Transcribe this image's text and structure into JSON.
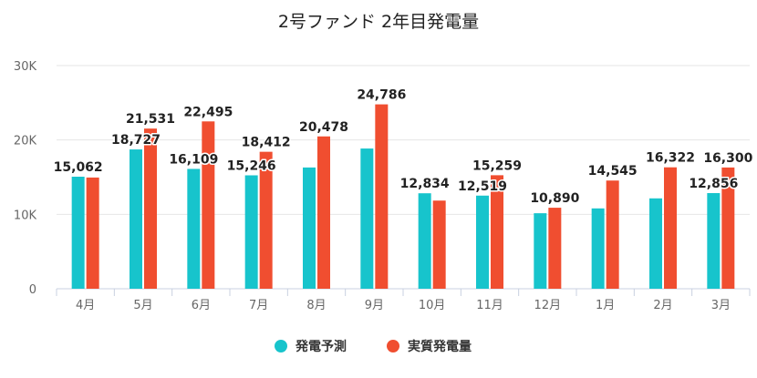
{
  "chart_data": {
    "type": "bar",
    "title": "2号ファンド 2年目発電量",
    "xlabel": "",
    "ylabel": "",
    "categories": [
      "4月",
      "5月",
      "6月",
      "7月",
      "8月",
      "9月",
      "10月",
      "11月",
      "12月",
      "1月",
      "2月",
      "3月"
    ],
    "series": [
      {
        "name": "発電予測",
        "color": "#17c4cc",
        "values": [
          15062,
          18727,
          16109,
          15246,
          16300,
          18850,
          12834,
          12519,
          10150,
          10800,
          12150,
          12856
        ],
        "labels": [
          "15,062",
          "18,727",
          "16,109",
          "15,246",
          null,
          null,
          "12,834",
          "12,519",
          null,
          null,
          null,
          "12,856"
        ]
      },
      {
        "name": "実質発電量",
        "color": "#f04e30",
        "values": [
          14950,
          21531,
          22495,
          18412,
          20478,
          24786,
          11850,
          15259,
          10890,
          14545,
          16322,
          16300
        ],
        "labels": [
          null,
          "21,531",
          "22,495",
          "18,412",
          "20,478",
          "24,786",
          null,
          "15,259",
          "10,890",
          "14,545",
          "16,322",
          "16,300"
        ]
      }
    ],
    "ylim": [
      0,
      30000
    ],
    "yticks": [
      0,
      10000,
      20000,
      30000
    ],
    "ytick_labels": [
      "0",
      "10K",
      "20K",
      "30K"
    ],
    "grid": true,
    "legend_position": "bottom"
  }
}
